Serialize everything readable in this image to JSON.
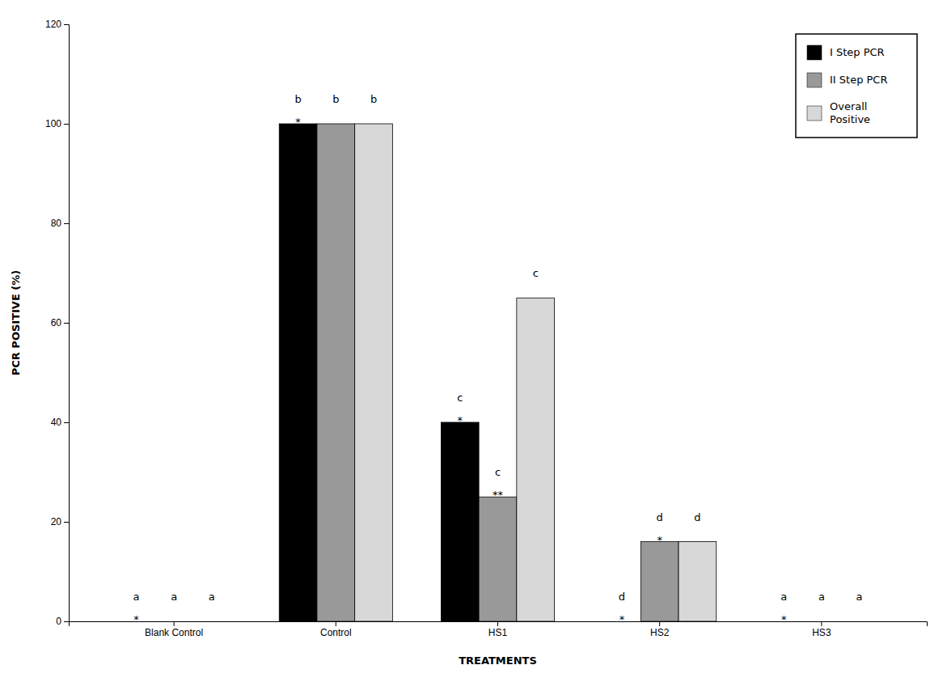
{
  "chart_data": {
    "type": "bar",
    "xlabel": "TREATMENTS",
    "ylabel": "PCR POSITIVE (%)",
    "categories": [
      "Blank Control",
      "Control",
      "HS1",
      "HS2",
      "HS3"
    ],
    "series": [
      {
        "name": "I Step PCR",
        "color": "#000000",
        "values": [
          0,
          100,
          40,
          0,
          0
        ],
        "letters": [
          "a",
          "b",
          "c",
          "d",
          "a"
        ],
        "stars": [
          "*",
          "*",
          "*",
          "*",
          "*"
        ]
      },
      {
        "name": "II Step PCR",
        "color": "#999999",
        "values": [
          0,
          100,
          25,
          16,
          0
        ],
        "letters": [
          "a",
          "b",
          "c",
          "d",
          "a"
        ],
        "stars": [
          null,
          null,
          "**",
          "*",
          null
        ]
      },
      {
        "name": "Overall\nPositive",
        "color": "#d8d8d8",
        "values": [
          0,
          100,
          65,
          16,
          0
        ],
        "letters": [
          "a",
          "b",
          "c",
          "d",
          "a"
        ],
        "stars": [
          null,
          null,
          null,
          null,
          null
        ]
      }
    ],
    "ylim": [
      0,
      120
    ],
    "yticks": [
      0,
      20,
      40,
      60,
      80,
      100,
      120
    ],
    "grid": false,
    "legend": "upper right"
  }
}
